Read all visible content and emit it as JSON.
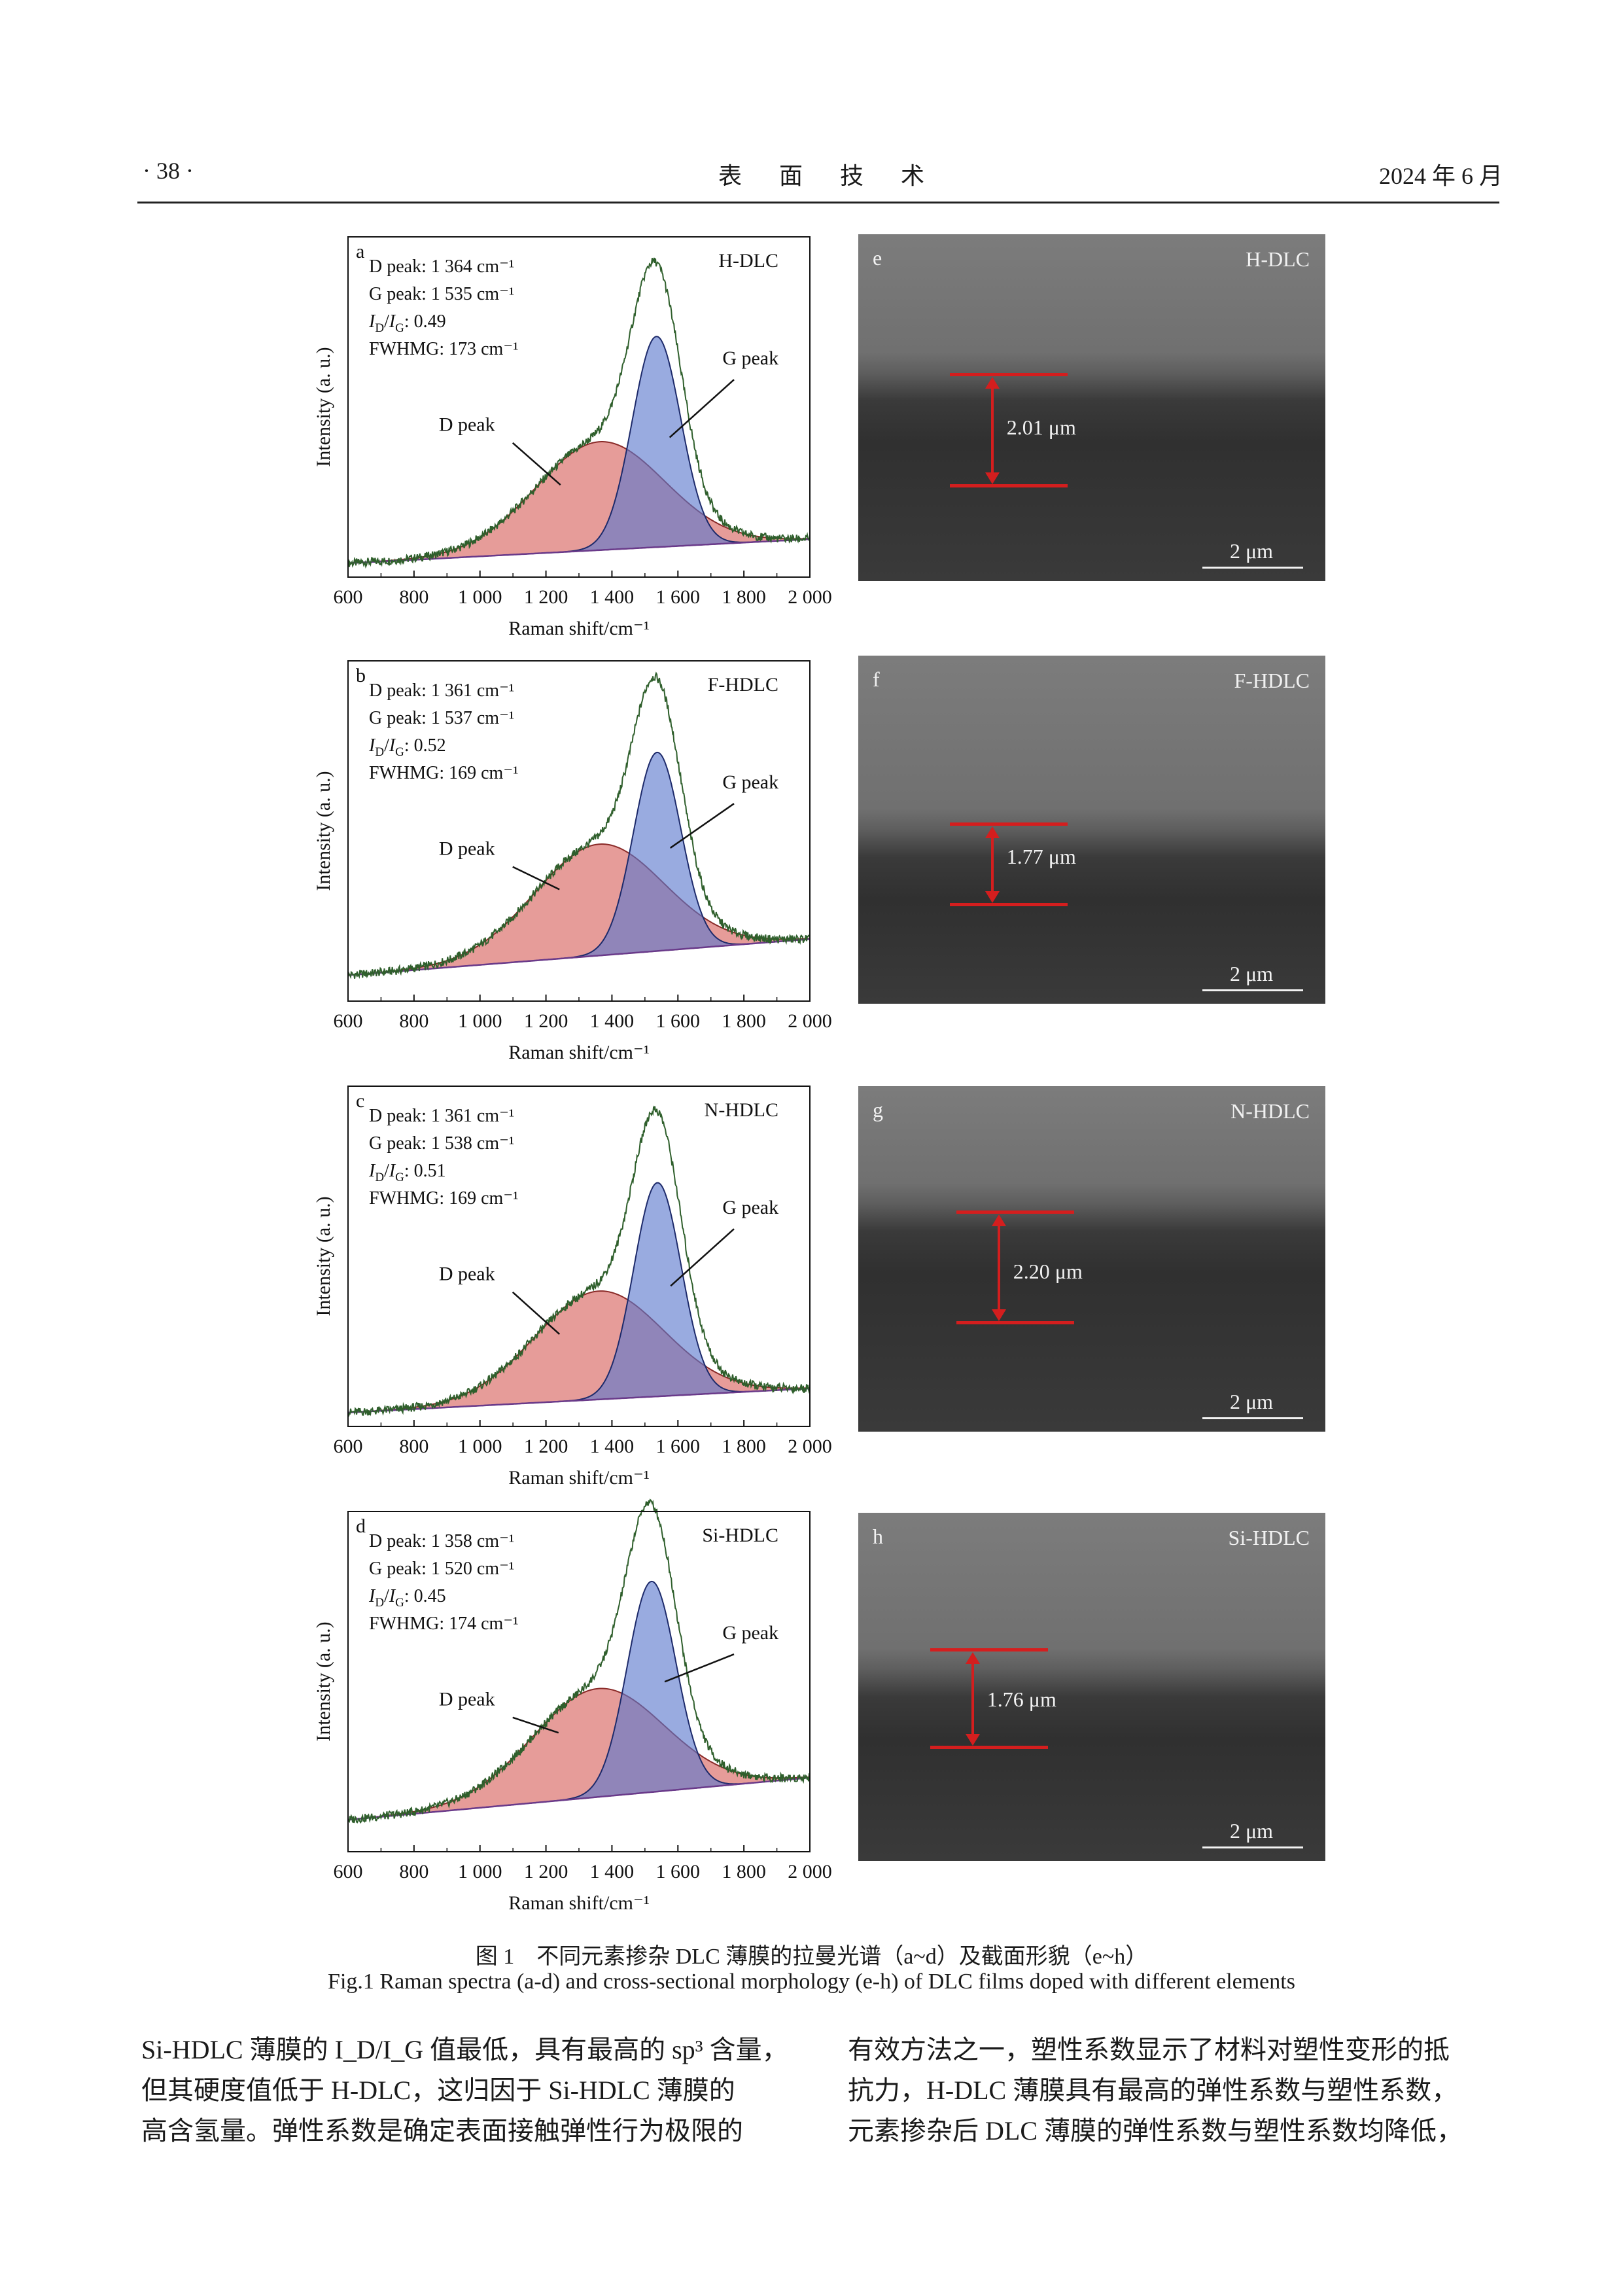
{
  "header": {
    "page_number": "· 38 ·",
    "journal": "表 面 技 术",
    "date": "2024 年 6 月"
  },
  "chart_data": [
    {
      "type": "line",
      "panel": "a",
      "sample": "H-DLC",
      "annotations": [
        "D peak: 1 364 cm⁻¹",
        "G peak: 1 535 cm⁻¹",
        "I_D/I_G: 0.49",
        "FWHMG: 173 cm⁻¹"
      ],
      "ratio": "0.49",
      "xlabel": "Raman shift/cm⁻¹",
      "ylabel": "Intensity (a. u.)",
      "xlim": [
        600,
        2000
      ],
      "xticks": [
        "600",
        "800",
        "1 000",
        "1 200",
        "1 400",
        "1 600",
        "1 800",
        "2 000"
      ],
      "series": [
        {
          "name": "D peak",
          "center": 1364,
          "amplitude": 0.36,
          "fwhm": 460
        },
        {
          "name": "G peak",
          "center": 1535,
          "amplitude": 0.7,
          "fwhm": 173
        }
      ],
      "baseline": [
        0.02,
        0.1
      ]
    },
    {
      "type": "line",
      "panel": "b",
      "sample": "F-HDLC",
      "annotations": [
        "D peak: 1 361 cm⁻¹",
        "G peak: 1 537 cm⁻¹",
        "I_D/I_G: 0.52",
        "FWHMG: 169 cm⁻¹"
      ],
      "ratio": "0.52",
      "xlabel": "Raman shift/cm⁻¹",
      "ylabel": "Intensity (a. u.)",
      "xlim": [
        600,
        2000
      ],
      "xticks": [
        "600",
        "800",
        "1 000",
        "1 200",
        "1 400",
        "1 600",
        "1 800",
        "2 000"
      ],
      "series": [
        {
          "name": "D peak",
          "center": 1361,
          "amplitude": 0.37,
          "fwhm": 460
        },
        {
          "name": "G peak",
          "center": 1537,
          "amplitude": 0.66,
          "fwhm": 169
        }
      ],
      "baseline": [
        0.06,
        0.18
      ]
    },
    {
      "type": "line",
      "panel": "c",
      "sample": "N-HDLC",
      "annotations": [
        "D peak: 1 361 cm⁻¹",
        "G peak: 1 538 cm⁻¹",
        "I_D/I_G: 0.51",
        "FWHMG: 169 cm⁻¹"
      ],
      "ratio": "0.51",
      "xlabel": "Raman shift/cm⁻¹",
      "ylabel": "Intensity (a. u.)",
      "xlim": [
        600,
        2000
      ],
      "xticks": [
        "600",
        "800",
        "1 000",
        "1 200",
        "1 400",
        "1 600",
        "1 800",
        "2 000"
      ],
      "series": [
        {
          "name": "D peak",
          "center": 1361,
          "amplitude": 0.36,
          "fwhm": 460
        },
        {
          "name": "G peak",
          "center": 1538,
          "amplitude": 0.71,
          "fwhm": 169
        }
      ],
      "baseline": [
        0.02,
        0.1
      ]
    },
    {
      "type": "line",
      "panel": "d",
      "sample": "Si-HDLC",
      "annotations": [
        "D peak: 1 358 cm⁻¹",
        "G peak: 1 520 cm⁻¹",
        "I_D/I_G: 0.45",
        "FWHMG: 174 cm⁻¹"
      ],
      "ratio": "0.45",
      "xlabel": "Raman shift/cm⁻¹",
      "ylabel": "Intensity (a. u.)",
      "xlim": [
        600,
        2000
      ],
      "xticks": [
        "600",
        "800",
        "1 000",
        "1 200",
        "1 400",
        "1 600",
        "1 800",
        "2 000"
      ],
      "series": [
        {
          "name": "D peak",
          "center": 1358,
          "amplitude": 0.36,
          "fwhm": 470
        },
        {
          "name": "G peak",
          "center": 1520,
          "amplitude": 0.7,
          "fwhm": 174
        }
      ],
      "baseline": [
        0.08,
        0.22
      ]
    }
  ],
  "sem_images": [
    {
      "panel": "e",
      "sample": "H-DLC",
      "thickness": "2.01 μm",
      "scale_bar": "2 μm"
    },
    {
      "panel": "f",
      "sample": "F-HDLC",
      "thickness": "1.77 μm",
      "scale_bar": "2 μm"
    },
    {
      "panel": "g",
      "sample": "N-HDLC",
      "thickness": "2.20 μm",
      "scale_bar": "2 μm"
    },
    {
      "panel": "h",
      "sample": "Si-HDLC",
      "thickness": "1.76 μm",
      "scale_bar": "2 μm"
    }
  ],
  "caption": {
    "cn": "图 1　不同元素掺杂 DLC 薄膜的拉曼光谱（a~d）及截面形貌（e~h）",
    "en": "Fig.1 Raman spectra (a-d) and cross-sectional morphology (e-h) of DLC films doped with different elements"
  },
  "body": {
    "left": [
      "Si-HDLC 薄膜的 I_D/I_G 值最低，具有最高的 sp³ 含量，",
      "但其硬度值低于 H-DLC，这归因于 Si-HDLC 薄膜的",
      "高含氢量。弹性系数是确定表面接触弹性行为极限的"
    ],
    "right": [
      "有效方法之一，塑性系数显示了材料对塑性变形的抵",
      "抗力，H-DLC 薄膜具有最高的弹性系数与塑性系数，",
      "元素掺杂后 DLC 薄膜的弹性系数与塑性系数均降低，"
    ]
  }
}
